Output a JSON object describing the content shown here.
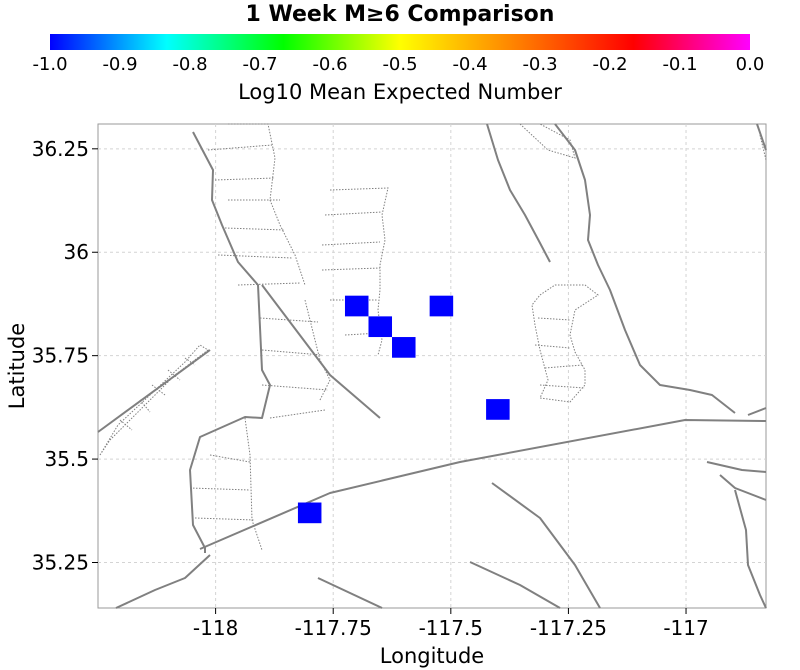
{
  "chart_data": {
    "type": "heatmap",
    "title": "1 Week M≥6 Comparison",
    "colorbar": {
      "label": "Log10 Mean Expected Number",
      "ticks": [
        "-1.0",
        "-0.9",
        "-0.8",
        "-0.7",
        "-0.6",
        "-0.5",
        "-0.4",
        "-0.3",
        "-0.2",
        "-0.1",
        "0.0"
      ],
      "range": [
        -1.0,
        0.0
      ],
      "colors": [
        "#0000ff",
        "#00ffff",
        "#00ff00",
        "#ffff00",
        "#ff8000",
        "#ff0000",
        "#ff00ff"
      ]
    },
    "xlabel": "Longitude",
    "ylabel": "Latitude",
    "xlim": [
      -118.25,
      -116.83
    ],
    "ylim": [
      35.14,
      36.31
    ],
    "xticks": [
      -118,
      -117.75,
      -117.5,
      -117.25,
      -117
    ],
    "xtick_labels": [
      "-118",
      "-117.75",
      "-117.5",
      "-117.25",
      "-117"
    ],
    "yticks": [
      35.25,
      35.5,
      35.75,
      36,
      36.25
    ],
    "ytick_labels": [
      "35.25",
      "35.5",
      "35.75",
      "36",
      "36.25"
    ],
    "grid": true,
    "cell_size_deg": 0.05,
    "cells": [
      {
        "lon": -117.7,
        "lat": 35.87,
        "value": -1.0
      },
      {
        "lon": -117.65,
        "lat": 35.82,
        "value": -1.0
      },
      {
        "lon": -117.6,
        "lat": 35.77,
        "value": -1.0
      },
      {
        "lon": -117.52,
        "lat": 35.87,
        "value": -1.0
      },
      {
        "lon": -117.4,
        "lat": 35.62,
        "value": -1.0
      },
      {
        "lon": -117.8,
        "lat": 35.37,
        "value": -1.0
      }
    ],
    "cell_color": "#0000ff",
    "fault_color": "#808080"
  }
}
